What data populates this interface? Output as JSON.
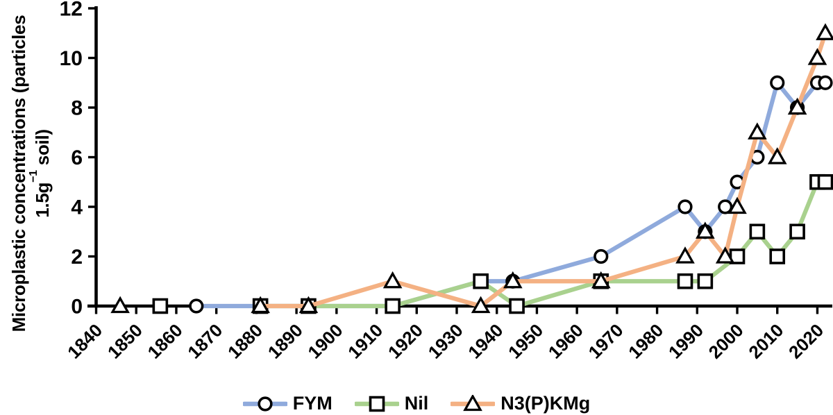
{
  "y_axis_title": {
    "line1": "Microplastic concentrations (particles",
    "line2_pre": "1.5g",
    "line2_sup": "−1",
    "line2_post": " soil)"
  },
  "chart_data": {
    "type": "line",
    "title": "",
    "xlabel": "",
    "ylabel": "Microplastic concentrations (particles 1.5g−1 soil)",
    "x_base": 1840,
    "xlim": [
      1840,
      2026
    ],
    "ylim": [
      0,
      12
    ],
    "x_ticks": [
      1840,
      1850,
      1860,
      1870,
      1880,
      1890,
      1900,
      1910,
      1920,
      1930,
      1940,
      1950,
      1960,
      1970,
      1980,
      1990,
      2000,
      2010,
      2020
    ],
    "y_ticks": [
      0,
      2,
      4,
      6,
      8,
      10,
      12
    ],
    "grid": false,
    "legend_position": "bottom",
    "axis_color": "#000000",
    "marker_fill": "#FFFFFF",
    "series": [
      {
        "name": "FYM",
        "marker": "circle",
        "color": "#8FAADC",
        "line_start_index": 0,
        "points": [
          [
            1865,
            0
          ],
          [
            1881,
            0
          ],
          [
            1914,
            0
          ],
          [
            1936,
            1
          ],
          [
            1944,
            1
          ],
          [
            1966,
            2
          ],
          [
            1987,
            4
          ],
          [
            1992,
            3
          ],
          [
            1997,
            4
          ],
          [
            2000,
            5
          ],
          [
            2005,
            6
          ],
          [
            2010,
            9
          ],
          [
            2015,
            8
          ],
          [
            2020,
            9
          ],
          [
            2022,
            9
          ]
        ]
      },
      {
        "name": "Nil",
        "marker": "square",
        "color": "#A9D18E",
        "line_start_index": 1,
        "points": [
          [
            1856,
            0
          ],
          [
            1881,
            0
          ],
          [
            1893,
            0
          ],
          [
            1914,
            0
          ],
          [
            1936,
            1
          ],
          [
            1945,
            0
          ],
          [
            1966,
            1
          ],
          [
            1987,
            1
          ],
          [
            1992,
            1
          ],
          [
            2000,
            2
          ],
          [
            2005,
            3
          ],
          [
            2010,
            2
          ],
          [
            2015,
            3
          ],
          [
            2020,
            5
          ],
          [
            2022,
            5
          ]
        ]
      },
      {
        "name": "N3(P)KMg",
        "marker": "triangle",
        "color": "#F4B183",
        "line_start_index": 1,
        "points": [
          [
            1846,
            0
          ],
          [
            1881,
            0
          ],
          [
            1893,
            0
          ],
          [
            1914,
            1
          ],
          [
            1936,
            0
          ],
          [
            1944,
            1
          ],
          [
            1966,
            1
          ],
          [
            1987,
            2
          ],
          [
            1992,
            3
          ],
          [
            1997,
            2
          ],
          [
            2000,
            4
          ],
          [
            2005,
            7
          ],
          [
            2010,
            6
          ],
          [
            2015,
            8
          ],
          [
            2020,
            10
          ],
          [
            2022,
            11
          ]
        ]
      }
    ]
  }
}
